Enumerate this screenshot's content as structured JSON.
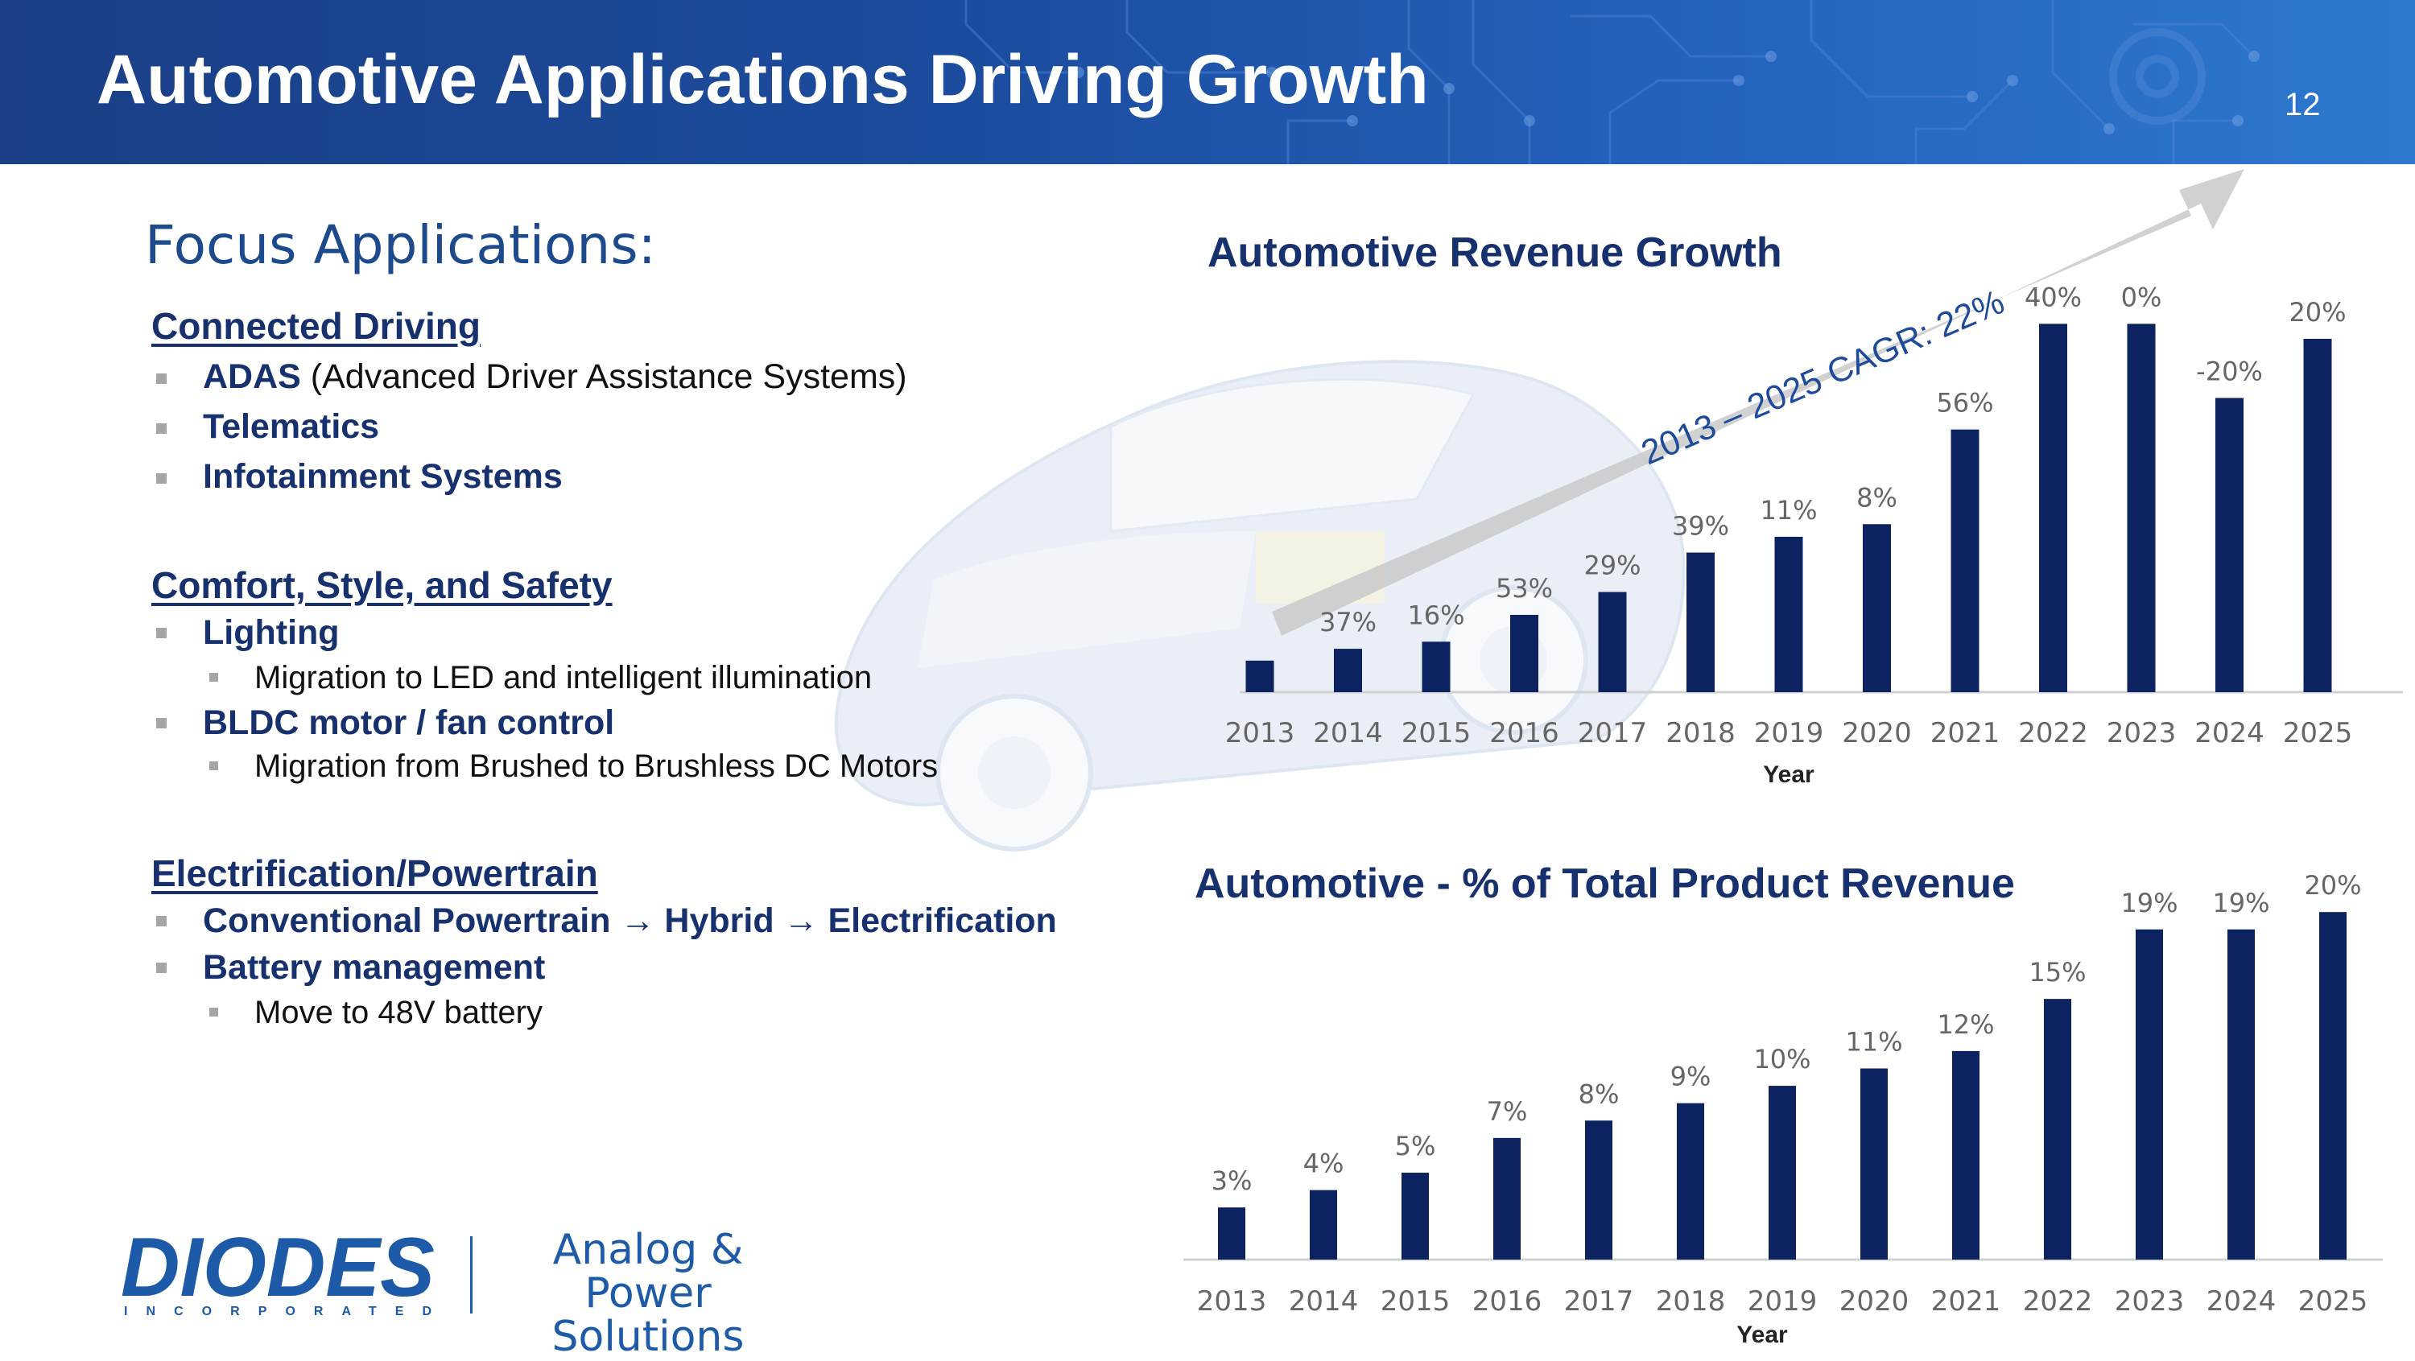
{
  "slide": {
    "title": "Automotive Applications Driving Growth",
    "page_number": "12"
  },
  "left": {
    "heading": "Focus Applications:",
    "sections": [
      {
        "title": "Connected Driving",
        "items": [
          {
            "bold": "ADAS",
            "rest": " (Advanced Driver Assistance Systems)"
          },
          {
            "bold": "Telematics",
            "rest": ""
          },
          {
            "bold": "Infotainment Systems",
            "rest": ""
          }
        ]
      },
      {
        "title": "Comfort, Style, and Safety",
        "items": [
          {
            "label": "Lighting",
            "sub": "Migration to LED and intelligent illumination"
          },
          {
            "label": "BLDC motor / fan control",
            "sub": "Migration from Brushed to Brushless DC Motors"
          }
        ]
      },
      {
        "title": "Electrification/Powertrain",
        "items": [
          {
            "label": "Conventional Powertrain → Hybrid → Electrification"
          },
          {
            "label": "Battery management",
            "sub": "Move to 48V battery"
          }
        ]
      }
    ]
  },
  "logo": {
    "brand": "DIODES",
    "sub": "INCORPORATED",
    "tagline_line1": "Analog & Power",
    "tagline_line2": "Solutions"
  },
  "colors": {
    "header": "#1c4c9e",
    "bar": "#0d2260",
    "text_blue": "#17306e",
    "arrow": "#c9c9c9"
  },
  "chart_data": [
    {
      "type": "bar",
      "title": "Automotive Revenue Growth",
      "xlabel": "Year",
      "ylabel": "",
      "categories": [
        "2013",
        "2014",
        "2015",
        "2016",
        "2017",
        "2018",
        "2019",
        "2020",
        "2021",
        "2022",
        "2023",
        "2024",
        "2025"
      ],
      "values": [
        40,
        55,
        64,
        98,
        127,
        177,
        197,
        213,
        333,
        467,
        467,
        373,
        448
      ],
      "data_labels": [
        "",
        "37%",
        "16%",
        "53%",
        "29%",
        "39%",
        "11%",
        "8%",
        "56%",
        "40%",
        "0%",
        "-20%",
        "20%"
      ],
      "annotation": "2013 – 2025 CAGR: 22%",
      "ylim": [
        0,
        500
      ]
    },
    {
      "type": "bar",
      "title": "Automotive - % of Total Product Revenue",
      "xlabel": "Year",
      "ylabel": "",
      "categories": [
        "2013",
        "2014",
        "2015",
        "2016",
        "2017",
        "2018",
        "2019",
        "2020",
        "2021",
        "2022",
        "2023",
        "2024",
        "2025"
      ],
      "values": [
        3,
        4,
        5,
        7,
        8,
        9,
        10,
        11,
        12,
        15,
        19,
        19,
        20
      ],
      "data_labels": [
        "3%",
        "4%",
        "5%",
        "7%",
        "8%",
        "9%",
        "10%",
        "11%",
        "12%",
        "15%",
        "19%",
        "19%",
        "20%"
      ],
      "ylim": [
        0,
        22
      ]
    }
  ]
}
